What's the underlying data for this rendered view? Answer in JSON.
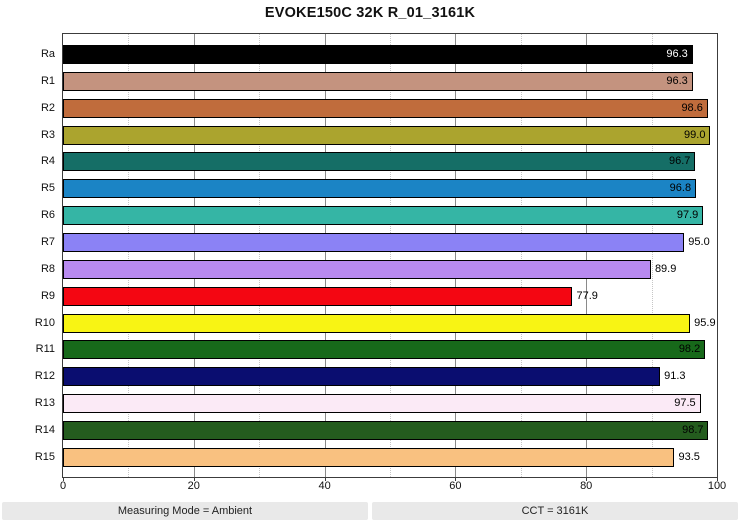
{
  "title": "EVOKE150C 32K R_01_3161K",
  "footer": {
    "measuring_mode": "Measuring Mode = Ambient",
    "cct": "CCT = 3161K"
  },
  "chart_data": {
    "type": "bar",
    "orientation": "horizontal",
    "title": "EVOKE150C 32K R_01_3161K",
    "xlabel": "",
    "ylabel": "",
    "xlim": [
      0,
      100
    ],
    "xticks": [
      0,
      20,
      40,
      60,
      80,
      100
    ],
    "major_gridlines": [
      20,
      40,
      60,
      80
    ],
    "minor_gridlines": [
      10,
      30,
      50,
      70,
      90
    ],
    "grid": true,
    "legend": false,
    "categories": [
      "Ra",
      "R1",
      "R2",
      "R3",
      "R4",
      "R5",
      "R6",
      "R7",
      "R8",
      "R9",
      "R10",
      "R11",
      "R12",
      "R13",
      "R14",
      "R15"
    ],
    "values": [
      96.3,
      96.3,
      98.6,
      99.0,
      96.7,
      96.8,
      97.9,
      95.0,
      89.9,
      77.9,
      95.9,
      98.2,
      91.3,
      97.5,
      98.7,
      93.5
    ],
    "bars": [
      {
        "label": "Ra",
        "value": 96.3,
        "display": "96.3",
        "color": "#000000",
        "value_label_position": "inside",
        "value_label_color": "#ffffff"
      },
      {
        "label": "R1",
        "value": 96.3,
        "display": "96.3",
        "color": "#c4937f",
        "value_label_position": "inside",
        "value_label_color": "#000000"
      },
      {
        "label": "R2",
        "value": 98.6,
        "display": "98.6",
        "color": "#c06c3c",
        "value_label_position": "inside",
        "value_label_color": "#000000"
      },
      {
        "label": "R3",
        "value": 99.0,
        "display": "99.0",
        "color": "#aba42e",
        "value_label_position": "inside",
        "value_label_color": "#000000"
      },
      {
        "label": "R4",
        "value": 96.7,
        "display": "96.7",
        "color": "#156e66",
        "value_label_position": "inside",
        "value_label_color": "#000000"
      },
      {
        "label": "R5",
        "value": 96.8,
        "display": "96.8",
        "color": "#1b84c5",
        "value_label_position": "inside",
        "value_label_color": "#000000"
      },
      {
        "label": "R6",
        "value": 97.9,
        "display": "97.9",
        "color": "#35b5a5",
        "value_label_position": "inside",
        "value_label_color": "#000000"
      },
      {
        "label": "R7",
        "value": 95.0,
        "display": "95.0",
        "color": "#8b82f5",
        "value_label_position": "outside",
        "value_label_color": "#000000"
      },
      {
        "label": "R8",
        "value": 89.9,
        "display": "89.9",
        "color": "#b88af0",
        "value_label_position": "outside",
        "value_label_color": "#000000"
      },
      {
        "label": "R9",
        "value": 77.9,
        "display": "77.9",
        "color": "#f40612",
        "value_label_position": "outside",
        "value_label_color": "#000000"
      },
      {
        "label": "R10",
        "value": 95.9,
        "display": "95.9",
        "color": "#f8f414",
        "value_label_position": "outside",
        "value_label_color": "#000000"
      },
      {
        "label": "R11",
        "value": 98.2,
        "display": "98.2",
        "color": "#17691a",
        "value_label_position": "inside",
        "value_label_color": "#000000"
      },
      {
        "label": "R12",
        "value": 91.3,
        "display": "91.3",
        "color": "#0a0d70",
        "value_label_position": "outside",
        "value_label_color": "#000000"
      },
      {
        "label": "R13",
        "value": 97.5,
        "display": "97.5",
        "color": "#fbeaf6",
        "value_label_position": "inside",
        "value_label_color": "#000000"
      },
      {
        "label": "R14",
        "value": 98.7,
        "display": "98.7",
        "color": "#245c1e",
        "value_label_position": "inside",
        "value_label_color": "#000000"
      },
      {
        "label": "R15",
        "value": 93.5,
        "display": "93.5",
        "color": "#f9c180",
        "value_label_position": "outside",
        "value_label_color": "#000000"
      }
    ]
  }
}
